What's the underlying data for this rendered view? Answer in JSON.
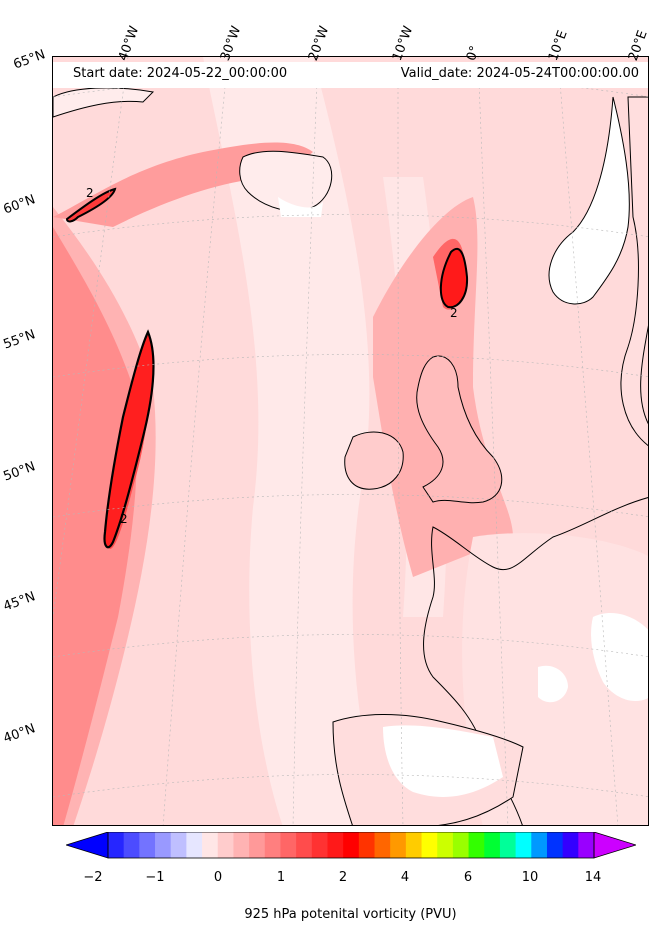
{
  "map": {
    "start_date": "Start date: 2024-05-22_00:00:00",
    "valid_date": "Valid_date: 2024-05-24T00:00:00.00",
    "latitude_labels": [
      "65°N",
      "60°N",
      "55°N",
      "50°N",
      "45°N",
      "40°N"
    ],
    "longitude_labels": [
      "40°W",
      "30°W",
      "20°W",
      "10°W",
      "0°",
      "10°E",
      "20°E"
    ],
    "contour_level_label": "2",
    "field": "potential vorticity",
    "colormap": [
      "#0000ff",
      "#2626ff",
      "#4c4cff",
      "#7373ff",
      "#9999ff",
      "#bfbfff",
      "#e6e6ff",
      "#ffe6e6",
      "#ffcccc",
      "#ffb3b3",
      "#ff9999",
      "#ff7f7f",
      "#ff6666",
      "#ff4c4c",
      "#ff3232",
      "#ff1919",
      "#ff0000",
      "#ff3300",
      "#ff6600",
      "#ff9900",
      "#ffcc00",
      "#ffff00",
      "#ccff00",
      "#99ff00",
      "#33ff00",
      "#00ff33",
      "#00ff99",
      "#00ffff",
      "#0099ff",
      "#0033ff",
      "#3300ff",
      "#9900ff",
      "#cc00ff"
    ]
  },
  "colorbar": {
    "tick_labels": [
      "−2",
      "−1",
      "0",
      "1",
      "2",
      "4",
      "6",
      "10",
      "14"
    ],
    "title": "925 hPa potenital vorticity (PVU)"
  }
}
